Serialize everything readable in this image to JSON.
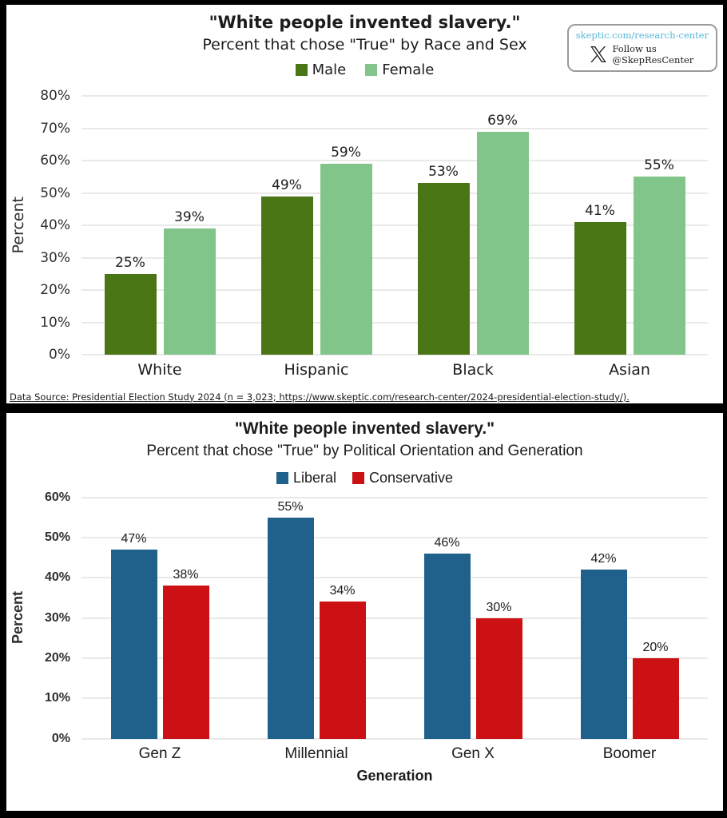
{
  "badge": {
    "url": "skeptic.com/research-center",
    "follow_line1": "Follow us",
    "follow_line2": "@SkepResCenter",
    "url_color": "#58b7d6"
  },
  "chart_data": [
    {
      "type": "bar",
      "title": "\"White people invented slavery.\"",
      "subtitle": "Percent that chose \"True\" by Race and Sex",
      "ylabel": "Percent",
      "xlabel": "",
      "categories": [
        "White",
        "Hispanic",
        "Black",
        "Asian"
      ],
      "series": [
        {
          "name": "Male",
          "color": "#4a7515",
          "values": [
            25,
            49,
            53,
            41
          ]
        },
        {
          "name": "Female",
          "color": "#82c58b",
          "values": [
            39,
            59,
            69,
            55
          ]
        }
      ],
      "ylim": [
        0,
        80
      ],
      "ytick_step": 10,
      "ytick_suffix": "%",
      "value_suffix": "%",
      "grid": true,
      "legend_position": "top",
      "footnote": "Data Source: Presidential Election Study 2024 (n = 3,023; https://www.skeptic.com/research-center/2024-presidential-election-study/)."
    },
    {
      "type": "bar",
      "title": "\"White people invented slavery.\"",
      "subtitle": "Percent that chose \"True\" by Political Orientation and Generation",
      "ylabel": "Percent",
      "xlabel": "Generation",
      "categories": [
        "Gen Z",
        "Millennial",
        "Gen X",
        "Boomer"
      ],
      "series": [
        {
          "name": "Liberal",
          "color": "#20618b",
          "values": [
            47,
            55,
            46,
            42
          ]
        },
        {
          "name": "Conservative",
          "color": "#cb1114",
          "values": [
            38,
            34,
            30,
            20
          ]
        }
      ],
      "ylim": [
        0,
        60
      ],
      "ytick_step": 10,
      "ytick_suffix": "%",
      "value_suffix": "%",
      "grid": true,
      "legend_position": "top"
    }
  ]
}
